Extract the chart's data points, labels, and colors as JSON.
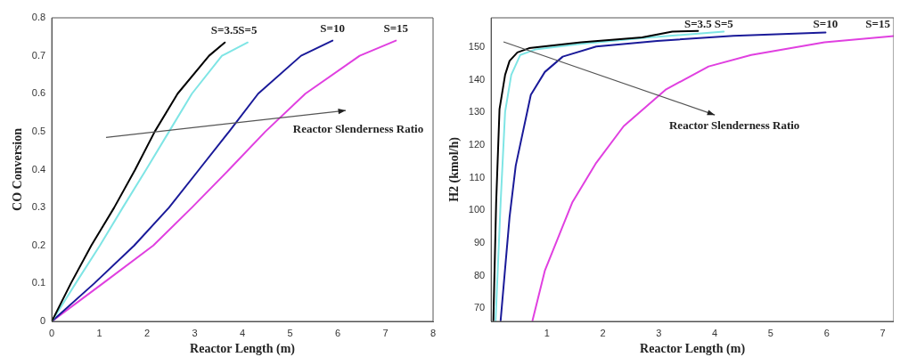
{
  "chart_data": [
    {
      "type": "line",
      "xlabel": "Reactor Length (m)",
      "ylabel": "CO Conversion",
      "xlim": [
        0,
        8
      ],
      "xticks": [
        0,
        1,
        2,
        3,
        4,
        5,
        6,
        7,
        8
      ],
      "ylim": [
        0,
        0.8
      ],
      "yticks": [
        0,
        0.1,
        0.2,
        0.3,
        0.4,
        0.5,
        0.6,
        0.7,
        0.8
      ],
      "grid": false,
      "legend": false,
      "marker": "none",
      "line_style": "solid",
      "series": [
        {
          "name": "S=3.5",
          "color": "#000000",
          "x": [
            0,
            0.4,
            0.83,
            1.31,
            1.75,
            2.16,
            2.64,
            3.3,
            3.63
          ],
          "values": [
            0,
            0.1,
            0.2,
            0.3,
            0.4,
            0.5,
            0.6,
            0.7,
            0.735
          ]
        },
        {
          "name": "S=5",
          "color": "#7fe5e5",
          "x": [
            0,
            0.5,
            1.01,
            1.49,
            1.98,
            2.46,
            2.94,
            3.57,
            4.11
          ],
          "values": [
            0,
            0.1,
            0.2,
            0.3,
            0.4,
            0.5,
            0.6,
            0.7,
            0.735
          ]
        },
        {
          "name": "S=10",
          "color": "#1a1a99",
          "x": [
            0,
            0.89,
            1.73,
            2.46,
            3.09,
            3.72,
            4.33,
            5.23,
            5.89
          ],
          "values": [
            0,
            0.1,
            0.2,
            0.3,
            0.4,
            0.5,
            0.6,
            0.7,
            0.74
          ]
        },
        {
          "name": "S=15",
          "color": "#e040e0",
          "x": [
            0,
            1.07,
            2.13,
            2.94,
            3.72,
            4.48,
            5.32,
            6.46,
            7.22
          ],
          "values": [
            0,
            0.1,
            0.2,
            0.3,
            0.4,
            0.5,
            0.6,
            0.7,
            0.74
          ]
        }
      ],
      "annotations": [
        "Reactor Slenderness Ratio"
      ]
    },
    {
      "type": "line",
      "xlabel": "Reactor Length (m)",
      "ylabel": "H2 (kmol/h)",
      "xlim": [
        0,
        7.2
      ],
      "xticks": [
        1,
        2,
        3,
        4,
        5,
        6,
        7
      ],
      "ylim": [
        66,
        159
      ],
      "yticks": [
        70,
        80,
        90,
        100,
        110,
        120,
        130,
        140,
        150
      ],
      "grid": false,
      "legend": false,
      "marker": "none",
      "line_style": "solid",
      "series": [
        {
          "name": "S=3.5",
          "color": "#000000",
          "x": [
            0.04,
            0.09,
            0.15,
            0.25,
            0.33,
            0.47,
            0.68,
            1.61,
            2.7,
            3.24,
            3.7
          ],
          "values": [
            66.3,
            102.4,
            131,
            141.5,
            145.8,
            148.4,
            149.7,
            151.5,
            153,
            154.8,
            155
          ]
        },
        {
          "name": "S=5",
          "color": "#7fe5e5",
          "x": [
            0.08,
            0.17,
            0.25,
            0.36,
            0.52,
            0.79,
            1.61,
            2.7,
            4.16
          ],
          "values": [
            66.3,
            102.4,
            130.2,
            141.5,
            147.6,
            149.3,
            151,
            152.8,
            154.8
          ]
        },
        {
          "name": "S=10",
          "color": "#1a1a99",
          "x": [
            0.17,
            0.33,
            0.44,
            0.71,
            0.96,
            1.28,
            1.88,
            2.97,
            4.33,
            5.98
          ],
          "values": [
            66.3,
            98,
            113.7,
            135.4,
            142.4,
            147.1,
            150.2,
            151.9,
            153.5,
            154.5
          ]
        },
        {
          "name": "S=15",
          "color": "#e040e0",
          "x": [
            0.74,
            0.96,
            1.45,
            1.88,
            2.37,
            3.13,
            3.89,
            4.65,
            5.96,
            7.2
          ],
          "values": [
            66.3,
            81.5,
            102.4,
            114.6,
            125.8,
            137.1,
            144.1,
            147.6,
            151.5,
            153.4
          ]
        }
      ],
      "annotations": [
        "Reactor Slenderness Ratio"
      ]
    }
  ]
}
